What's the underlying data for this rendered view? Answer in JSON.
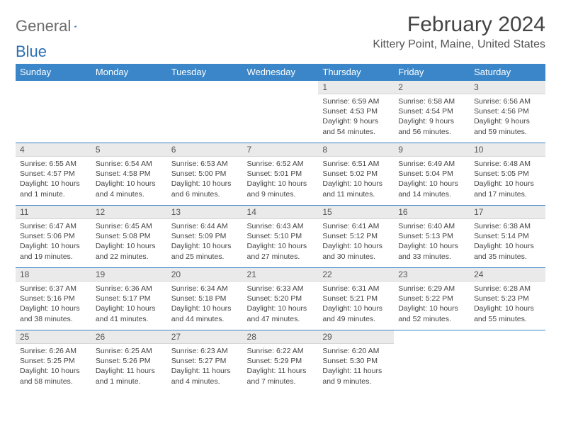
{
  "logo": {
    "part1": "General",
    "part2": "Blue"
  },
  "title": "February 2024",
  "location": "Kittery Point, Maine, United States",
  "colors": {
    "header_bg": "#3a86c8",
    "header_fg": "#ffffff",
    "daynum_bg": "#eaeaea",
    "border": "#3a86c8",
    "logo_gray": "#6b6b6b",
    "logo_blue": "#2a6fb5"
  },
  "day_headers": [
    "Sunday",
    "Monday",
    "Tuesday",
    "Wednesday",
    "Thursday",
    "Friday",
    "Saturday"
  ],
  "weeks": [
    [
      null,
      null,
      null,
      null,
      {
        "n": "1",
        "sunrise": "Sunrise: 6:59 AM",
        "sunset": "Sunset: 4:53 PM",
        "daylight": "Daylight: 9 hours and 54 minutes."
      },
      {
        "n": "2",
        "sunrise": "Sunrise: 6:58 AM",
        "sunset": "Sunset: 4:54 PM",
        "daylight": "Daylight: 9 hours and 56 minutes."
      },
      {
        "n": "3",
        "sunrise": "Sunrise: 6:56 AM",
        "sunset": "Sunset: 4:56 PM",
        "daylight": "Daylight: 9 hours and 59 minutes."
      }
    ],
    [
      {
        "n": "4",
        "sunrise": "Sunrise: 6:55 AM",
        "sunset": "Sunset: 4:57 PM",
        "daylight": "Daylight: 10 hours and 1 minute."
      },
      {
        "n": "5",
        "sunrise": "Sunrise: 6:54 AM",
        "sunset": "Sunset: 4:58 PM",
        "daylight": "Daylight: 10 hours and 4 minutes."
      },
      {
        "n": "6",
        "sunrise": "Sunrise: 6:53 AM",
        "sunset": "Sunset: 5:00 PM",
        "daylight": "Daylight: 10 hours and 6 minutes."
      },
      {
        "n": "7",
        "sunrise": "Sunrise: 6:52 AM",
        "sunset": "Sunset: 5:01 PM",
        "daylight": "Daylight: 10 hours and 9 minutes."
      },
      {
        "n": "8",
        "sunrise": "Sunrise: 6:51 AM",
        "sunset": "Sunset: 5:02 PM",
        "daylight": "Daylight: 10 hours and 11 minutes."
      },
      {
        "n": "9",
        "sunrise": "Sunrise: 6:49 AM",
        "sunset": "Sunset: 5:04 PM",
        "daylight": "Daylight: 10 hours and 14 minutes."
      },
      {
        "n": "10",
        "sunrise": "Sunrise: 6:48 AM",
        "sunset": "Sunset: 5:05 PM",
        "daylight": "Daylight: 10 hours and 17 minutes."
      }
    ],
    [
      {
        "n": "11",
        "sunrise": "Sunrise: 6:47 AM",
        "sunset": "Sunset: 5:06 PM",
        "daylight": "Daylight: 10 hours and 19 minutes."
      },
      {
        "n": "12",
        "sunrise": "Sunrise: 6:45 AM",
        "sunset": "Sunset: 5:08 PM",
        "daylight": "Daylight: 10 hours and 22 minutes."
      },
      {
        "n": "13",
        "sunrise": "Sunrise: 6:44 AM",
        "sunset": "Sunset: 5:09 PM",
        "daylight": "Daylight: 10 hours and 25 minutes."
      },
      {
        "n": "14",
        "sunrise": "Sunrise: 6:43 AM",
        "sunset": "Sunset: 5:10 PM",
        "daylight": "Daylight: 10 hours and 27 minutes."
      },
      {
        "n": "15",
        "sunrise": "Sunrise: 6:41 AM",
        "sunset": "Sunset: 5:12 PM",
        "daylight": "Daylight: 10 hours and 30 minutes."
      },
      {
        "n": "16",
        "sunrise": "Sunrise: 6:40 AM",
        "sunset": "Sunset: 5:13 PM",
        "daylight": "Daylight: 10 hours and 33 minutes."
      },
      {
        "n": "17",
        "sunrise": "Sunrise: 6:38 AM",
        "sunset": "Sunset: 5:14 PM",
        "daylight": "Daylight: 10 hours and 35 minutes."
      }
    ],
    [
      {
        "n": "18",
        "sunrise": "Sunrise: 6:37 AM",
        "sunset": "Sunset: 5:16 PM",
        "daylight": "Daylight: 10 hours and 38 minutes."
      },
      {
        "n": "19",
        "sunrise": "Sunrise: 6:36 AM",
        "sunset": "Sunset: 5:17 PM",
        "daylight": "Daylight: 10 hours and 41 minutes."
      },
      {
        "n": "20",
        "sunrise": "Sunrise: 6:34 AM",
        "sunset": "Sunset: 5:18 PM",
        "daylight": "Daylight: 10 hours and 44 minutes."
      },
      {
        "n": "21",
        "sunrise": "Sunrise: 6:33 AM",
        "sunset": "Sunset: 5:20 PM",
        "daylight": "Daylight: 10 hours and 47 minutes."
      },
      {
        "n": "22",
        "sunrise": "Sunrise: 6:31 AM",
        "sunset": "Sunset: 5:21 PM",
        "daylight": "Daylight: 10 hours and 49 minutes."
      },
      {
        "n": "23",
        "sunrise": "Sunrise: 6:29 AM",
        "sunset": "Sunset: 5:22 PM",
        "daylight": "Daylight: 10 hours and 52 minutes."
      },
      {
        "n": "24",
        "sunrise": "Sunrise: 6:28 AM",
        "sunset": "Sunset: 5:23 PM",
        "daylight": "Daylight: 10 hours and 55 minutes."
      }
    ],
    [
      {
        "n": "25",
        "sunrise": "Sunrise: 6:26 AM",
        "sunset": "Sunset: 5:25 PM",
        "daylight": "Daylight: 10 hours and 58 minutes."
      },
      {
        "n": "26",
        "sunrise": "Sunrise: 6:25 AM",
        "sunset": "Sunset: 5:26 PM",
        "daylight": "Daylight: 11 hours and 1 minute."
      },
      {
        "n": "27",
        "sunrise": "Sunrise: 6:23 AM",
        "sunset": "Sunset: 5:27 PM",
        "daylight": "Daylight: 11 hours and 4 minutes."
      },
      {
        "n": "28",
        "sunrise": "Sunrise: 6:22 AM",
        "sunset": "Sunset: 5:29 PM",
        "daylight": "Daylight: 11 hours and 7 minutes."
      },
      {
        "n": "29",
        "sunrise": "Sunrise: 6:20 AM",
        "sunset": "Sunset: 5:30 PM",
        "daylight": "Daylight: 11 hours and 9 minutes."
      },
      null,
      null
    ]
  ]
}
